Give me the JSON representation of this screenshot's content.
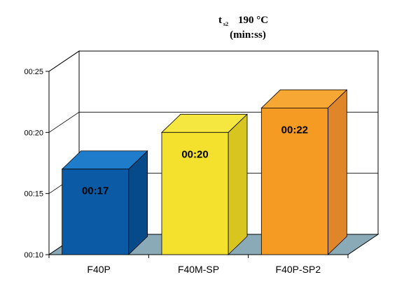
{
  "chart_data": {
    "type": "bar",
    "title_main": "t",
    "title_sub": "s2",
    "title_temp": "190  °C",
    "title_line2": "(min:ss)",
    "categories": [
      "F40P",
      "F40M-SP",
      "F40P-SP2"
    ],
    "values": [
      17,
      20,
      22
    ],
    "value_labels": [
      "00:17",
      "00:20",
      "00:22"
    ],
    "y_ticks": [
      10,
      15,
      20,
      25
    ],
    "y_tick_labels": [
      "00:10",
      "00:15",
      "00:20",
      "00:25"
    ],
    "ylim": [
      10,
      25
    ],
    "grid": true,
    "legend": "none",
    "bar_colors": [
      {
        "front": "#0a5aa6",
        "top": "#1f7ccb",
        "side": "#064a8a"
      },
      {
        "front": "#f4e12e",
        "top": "#f6e640",
        "side": "#d8c51f"
      },
      {
        "front": "#f59b24",
        "top": "#f7a733",
        "side": "#e0862a"
      }
    ],
    "floor_color": "#8aaab8"
  }
}
